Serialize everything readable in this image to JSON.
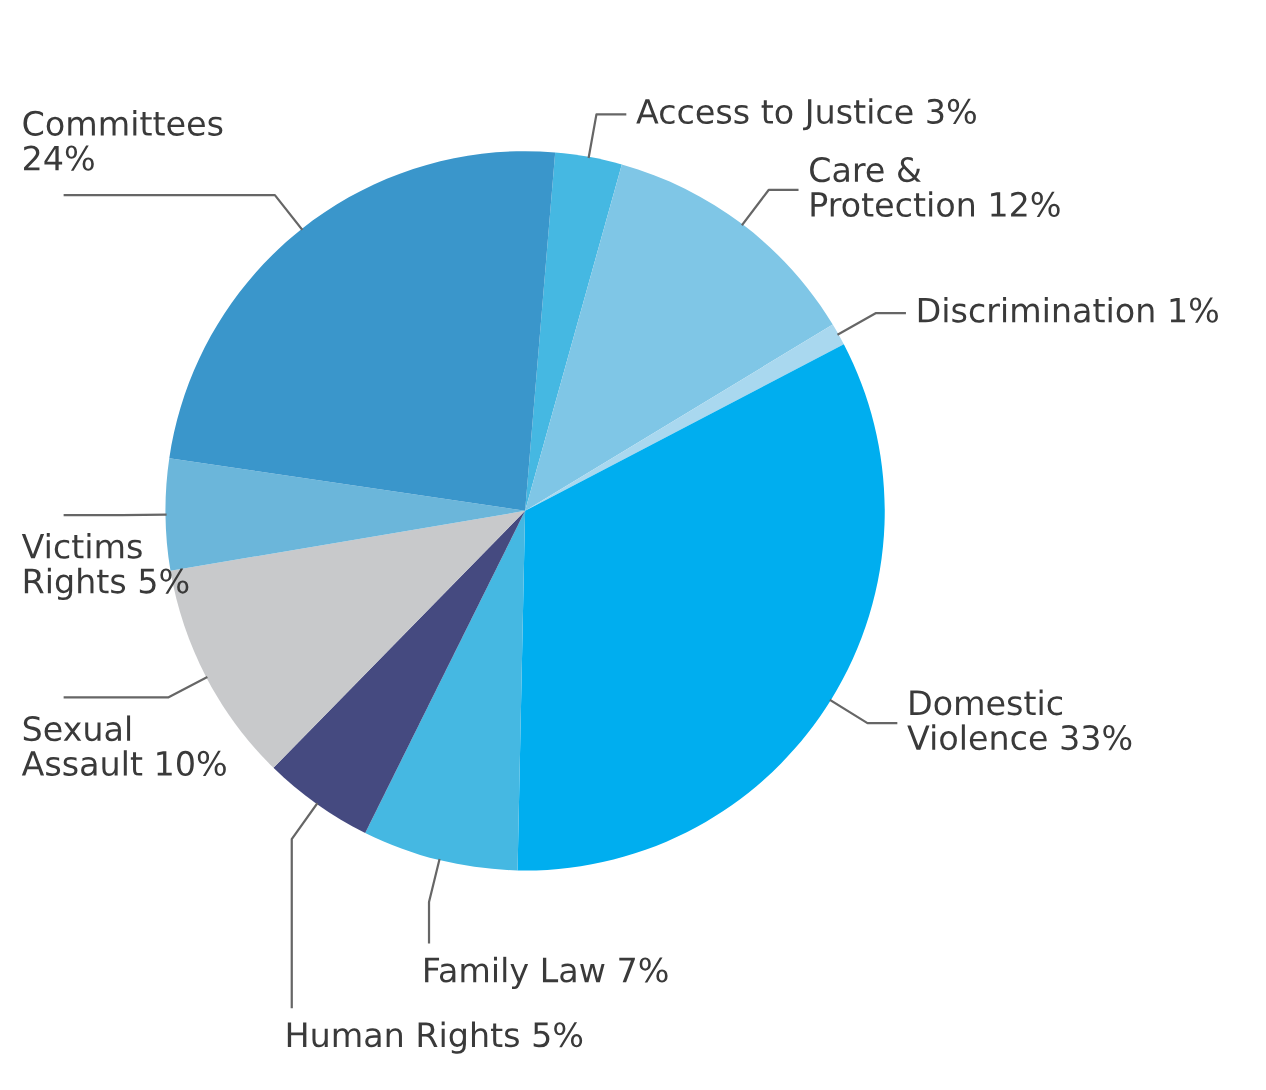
{
  "chart_data": {
    "type": "pie",
    "categories": [
      "Access to Justice",
      "Care &\nProtection",
      "Discrimination",
      "Domestic\nViolence",
      "Family Law",
      "Human Rights",
      "Sexual\nAssault",
      "Victims\nRights",
      "Committees\n"
    ],
    "values": [
      3,
      12,
      1,
      33,
      7,
      5,
      10,
      5,
      24
    ],
    "value_labels": [
      "3%",
      "12%",
      "1%",
      "33%",
      "7%",
      "5%",
      "10%",
      "5%",
      "24%"
    ],
    "colors": [
      "#45b8e2",
      "#7fc6e6",
      "#a9d8ef",
      "#00aeef",
      "#45b8e2",
      "#454a80",
      "#c8c9cb",
      "#6bb6da",
      "#3a96cb"
    ],
    "legend": false
  }
}
